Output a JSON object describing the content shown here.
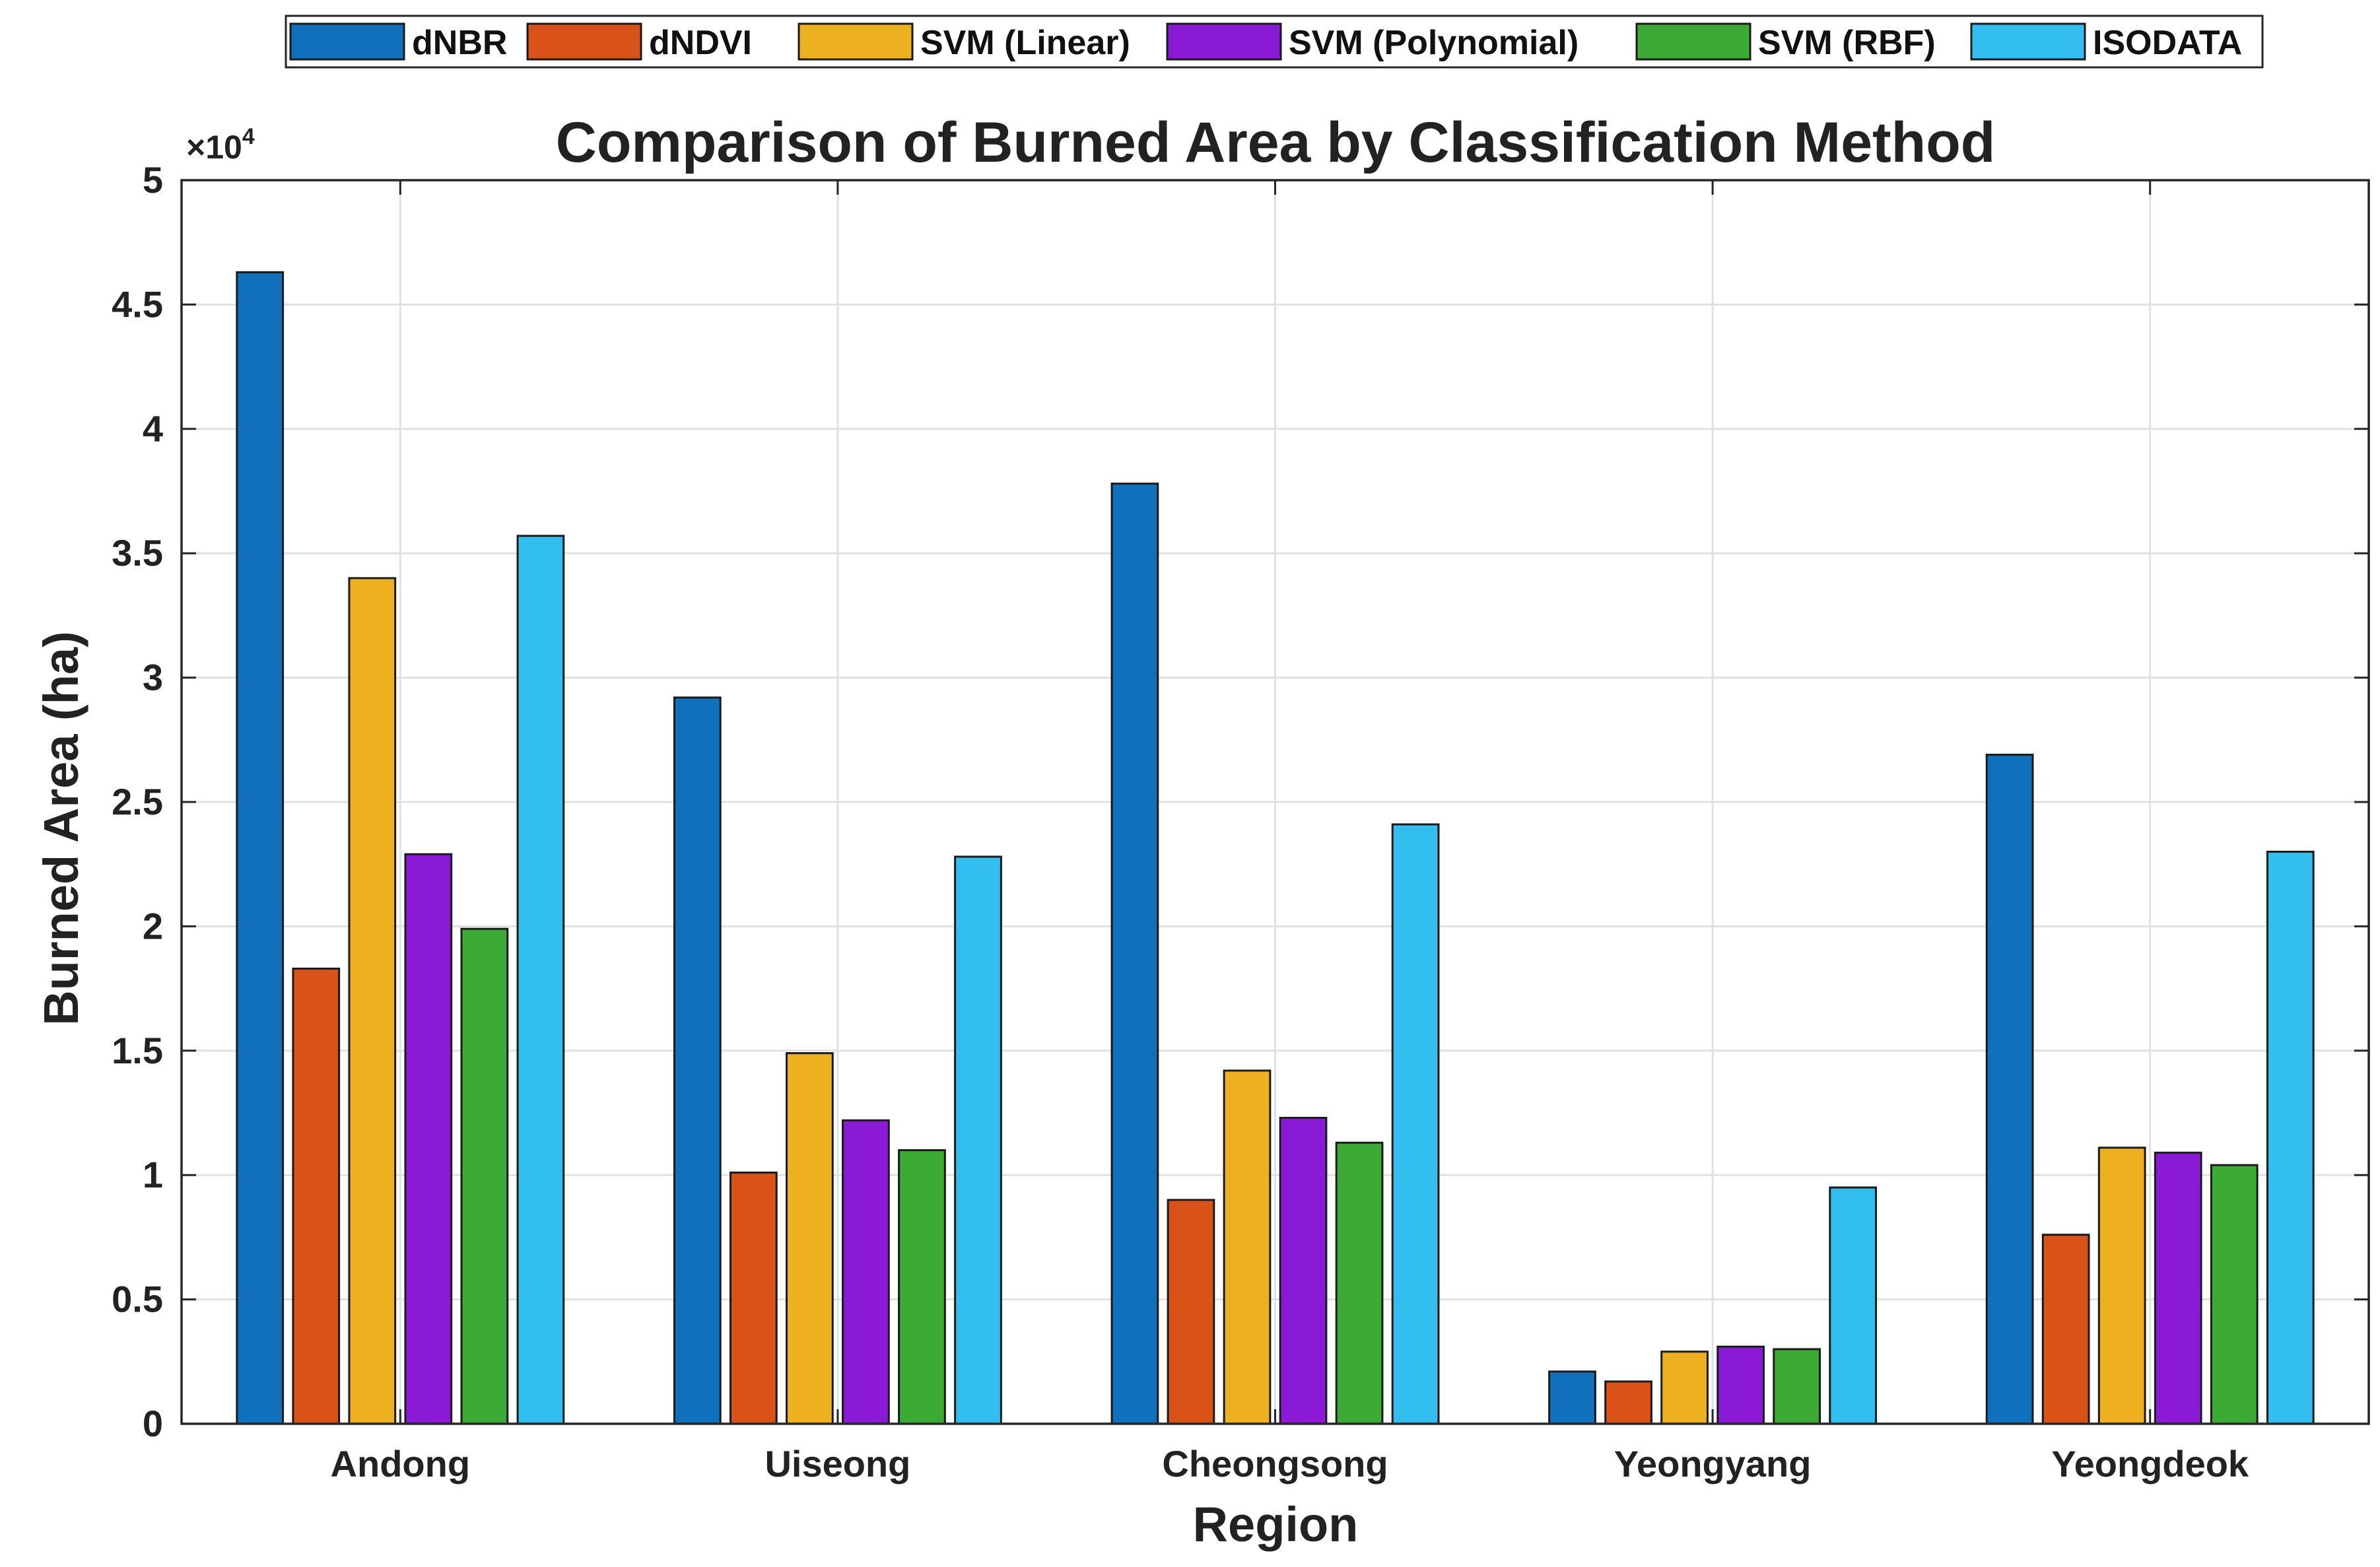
{
  "chart_data": {
    "type": "bar",
    "title": "Comparison of Burned Area by Classification Method",
    "xlabel": "Region",
    "ylabel": "Burned Area (ha)",
    "y_exponent_prefix": "×10",
    "y_exponent_power": "4",
    "ylim": [
      0,
      50000
    ],
    "yticks": [
      0,
      5000,
      10000,
      15000,
      20000,
      25000,
      30000,
      35000,
      40000,
      45000,
      50000
    ],
    "ytick_labels": [
      "0",
      "0.5",
      "1",
      "1.5",
      "2",
      "2.5",
      "3",
      "3.5",
      "4",
      "4.5",
      "5"
    ],
    "grid": true,
    "legend_position": "top-outside",
    "categories": [
      "Andong",
      "Uiseong",
      "Cheongsong",
      "Yeongyang",
      "Yeongdeok"
    ],
    "series": [
      {
        "name": "dNBR",
        "color": "#1170BB",
        "values": [
          46300,
          29200,
          37800,
          2100,
          26900
        ]
      },
      {
        "name": "dNDVI",
        "color": "#D95319",
        "values": [
          18300,
          10100,
          9000,
          1700,
          7600
        ]
      },
      {
        "name": "SVM (Linear)",
        "color": "#EDB120",
        "values": [
          34000,
          14900,
          14200,
          2900,
          11100
        ]
      },
      {
        "name": "SVM (Polynomial)",
        "color": "#8A1AD6",
        "values": [
          22900,
          12200,
          12300,
          3100,
          10900
        ]
      },
      {
        "name": "SVM (RBF)",
        "color": "#3CAB36",
        "values": [
          19900,
          11000,
          11300,
          3000,
          10400
        ]
      },
      {
        "name": "ISODATA",
        "color": "#33BEF0",
        "values": [
          35700,
          22800,
          24100,
          9500,
          23000
        ]
      }
    ]
  }
}
